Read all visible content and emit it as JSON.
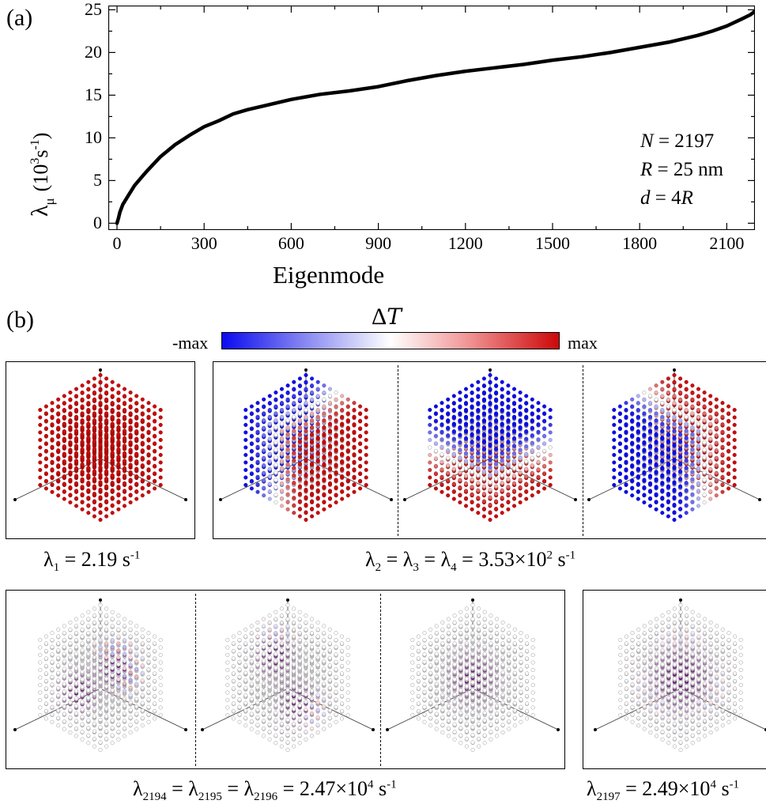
{
  "panel_a": {
    "label": "(a)",
    "ylabel_symbol": "λ",
    "ylabel_sub": "μ",
    "ylabel_units": "(10",
    "ylabel_exp": "3",
    "ylabel_units2": "s",
    "ylabel_exp2": "-1",
    "ylabel_close": ")",
    "xlabel": "Eigenmode",
    "annotations": {
      "n_var": "N",
      "n_val": " = 2197",
      "r_var": "R",
      "r_val": " = 25 nm",
      "d_var": "d",
      "d_val": " = 4",
      "d_var2": "R"
    }
  },
  "chart_data": {
    "type": "line",
    "title": "",
    "xlabel": "Eigenmode",
    "ylabel": "λμ (10³s⁻¹)",
    "xlim": [
      -30,
      2197
    ],
    "ylim": [
      -0.8,
      25.5
    ],
    "xticks": [
      0,
      300,
      600,
      900,
      1200,
      1500,
      1800,
      2100
    ],
    "yticks": [
      0,
      5,
      10,
      15,
      20,
      25
    ],
    "grid": false,
    "legend": "none",
    "series": [
      {
        "color": "#000000",
        "x": [
          0,
          5,
          10,
          20,
          40,
          60,
          80,
          100,
          150,
          200,
          250,
          300,
          350,
          400,
          450,
          500,
          600,
          700,
          800,
          900,
          1000,
          1100,
          1200,
          1300,
          1400,
          1500,
          1600,
          1700,
          1800,
          1900,
          2000,
          2050,
          2100,
          2150,
          2180,
          2196
        ],
        "y": [
          0.0,
          0.6,
          1.3,
          2.2,
          3.3,
          4.4,
          5.2,
          6.0,
          7.8,
          9.2,
          10.3,
          11.3,
          12.0,
          12.8,
          13.3,
          13.7,
          14.5,
          15.1,
          15.5,
          16.0,
          16.7,
          17.3,
          17.8,
          18.2,
          18.6,
          19.1,
          19.5,
          20.0,
          20.6,
          21.2,
          22.0,
          22.5,
          23.1,
          23.9,
          24.4,
          24.8
        ]
      }
    ]
  },
  "panel_b": {
    "label": "(b)",
    "colorbar": {
      "title": "ΔT",
      "min_label": "-max",
      "max_label": "max",
      "colors": [
        "#0b0bf0",
        "#ffffff",
        "#cc0808"
      ]
    },
    "captions": {
      "c1": {
        "sym": "λ",
        "sub": "1",
        "val": " = 2.19 s",
        "sup": "-1"
      },
      "c2": {
        "sym1": "λ",
        "sub1": "2",
        "sym2": " = λ",
        "sub2": "3",
        "sym3": " = λ",
        "sub3": "4",
        "val": " = 3.53×10",
        "sup1": "2",
        "unit": " s",
        "sup2": "-1"
      },
      "c3": {
        "sym1": "λ",
        "sub1": "2194",
        "sym2": " = λ",
        "sub2": "2195",
        "sym3": " = λ",
        "sub3": "2196",
        "val": " = 2.47×10",
        "sup1": "4",
        "unit": " s",
        "sup2": "-1"
      },
      "c4": {
        "sym1": "λ",
        "sub1": "2197",
        "val": " = 2.49×10",
        "sup1": "4",
        "unit": " s",
        "sup2": "-1"
      }
    },
    "cubes": [
      {
        "id": "mode-1",
        "pattern": "uniform"
      },
      {
        "id": "mode-2",
        "pattern": "split-x"
      },
      {
        "id": "mode-3",
        "pattern": "split-y"
      },
      {
        "id": "mode-4",
        "pattern": "split-z"
      },
      {
        "id": "mode-2194",
        "pattern": "checker-offset-a"
      },
      {
        "id": "mode-2195",
        "pattern": "checker-offset-b"
      },
      {
        "id": "mode-2196",
        "pattern": "checker-center"
      },
      {
        "id": "mode-2197",
        "pattern": "checker-full"
      }
    ]
  }
}
